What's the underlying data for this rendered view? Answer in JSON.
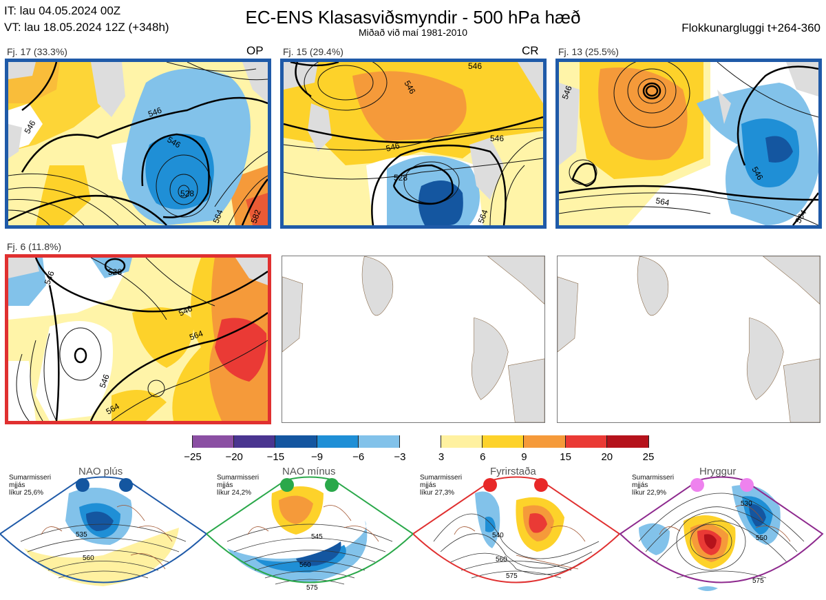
{
  "header": {
    "it_line": "IT: lau 04.05.2024 00Z",
    "vt_line": "VT: lau 18.05.2024 12Z  (+348h)",
    "title": "EC-ENS Klasasviðsmyndir - 500 hPa hæð",
    "subtitle": "Miðað við maí 1981-2010",
    "window": "Flokkunargluggi t+264-360"
  },
  "clusters": [
    {
      "label": "Fj. 17 (33.3%)",
      "mark": "OP",
      "contours": [
        "546",
        "546",
        "528",
        "546",
        "564",
        "582"
      ]
    },
    {
      "label": "Fj. 15 (29.4%)",
      "mark": "CR",
      "contours": [
        "546",
        "546",
        "546",
        "528",
        "546",
        "564"
      ]
    },
    {
      "label": "Fj. 13 (25.5%)",
      "mark": "",
      "contours": [
        "546",
        "546",
        "564",
        "564"
      ]
    },
    {
      "label": "Fj. 6 (11.8%)",
      "mark": "",
      "contours": [
        "528",
        "546",
        "546",
        "564",
        "546",
        "564"
      ]
    }
  ],
  "colorbar": {
    "ticks": [
      "−25",
      "−20",
      "−15",
      "−9",
      "−6",
      "−3",
      "3",
      "6",
      "9",
      "15",
      "20",
      "25"
    ],
    "colors": [
      "#8b4fa3",
      "#4a3590",
      "#1456a0",
      "#1f8fd6",
      "#82c2ea",
      "#ffffff",
      "#fff1a0",
      "#fdd22a",
      "#f59a3a",
      "#ea3a35",
      "#b5121b"
    ]
  },
  "regimes": [
    {
      "name": "NAO plús",
      "season": "Sumarmisseri",
      "smooth": "mjjás",
      "prob": "líkur 25,6%",
      "color": "#1f5aa8",
      "dot_color": "#1456a0",
      "contours": [
        "535",
        "560"
      ]
    },
    {
      "name": "NAO mínus",
      "season": "Sumarmisseri",
      "smooth": "mjjás",
      "prob": "líkur 24,2%",
      "color": "#2aa84a",
      "dot_color": "#2aa84a",
      "contours": [
        "545",
        "560",
        "575"
      ]
    },
    {
      "name": "Fyrirstaða",
      "season": "Sumarmisseri",
      "smooth": "mjjás",
      "prob": "líkur 27,3%",
      "color": "#e03030",
      "dot_color": "#e82828",
      "contours": [
        "540",
        "560",
        "575"
      ]
    },
    {
      "name": "Hryggur",
      "season": "Sumarmisseri",
      "smooth": "mjjás",
      "prob": "líkur 22,9%",
      "color": "#8e2a8e",
      "dot_color": "#ee82ee",
      "contours": [
        "530",
        "550",
        "575"
      ]
    }
  ]
}
